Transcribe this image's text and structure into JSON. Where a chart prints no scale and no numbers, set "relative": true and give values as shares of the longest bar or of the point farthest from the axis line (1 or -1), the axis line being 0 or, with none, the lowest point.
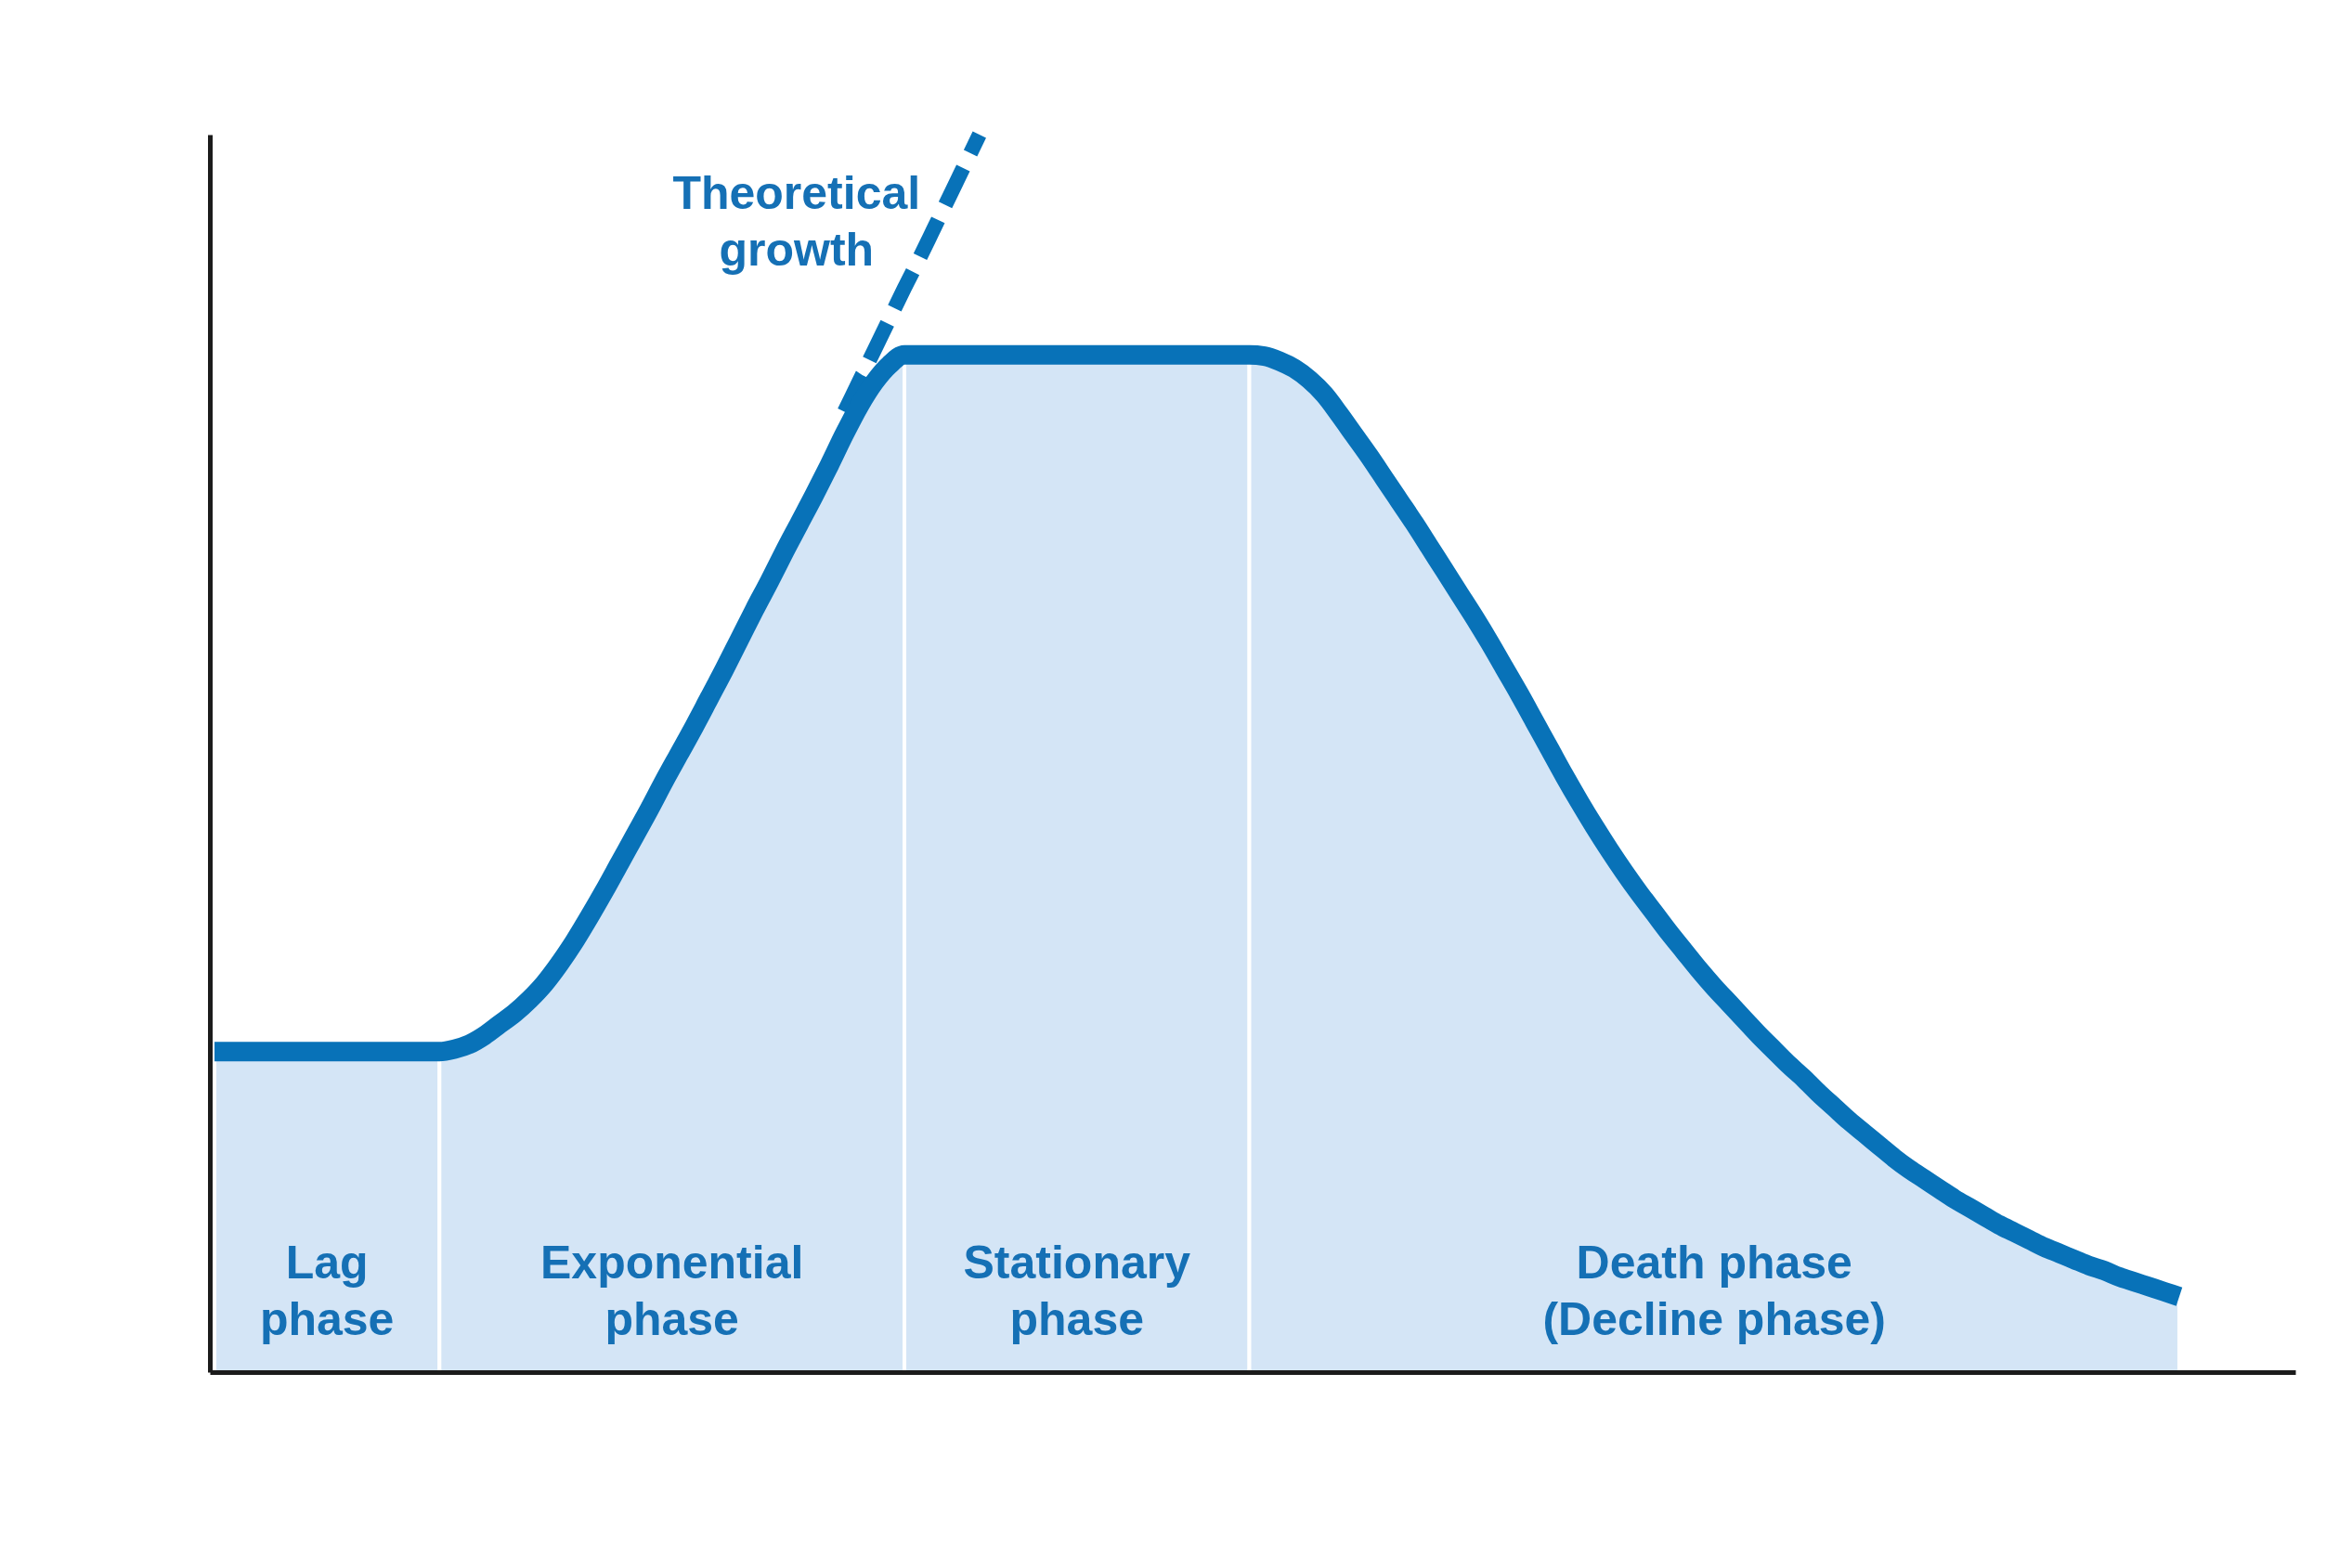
{
  "chart_data": {
    "type": "area",
    "relative": true,
    "tick_labels": false,
    "categories": [
      null,
      null,
      null,
      null,
      null,
      null,
      null,
      null,
      null,
      null,
      null,
      null,
      null,
      null,
      null,
      null,
      null,
      null,
      null,
      null,
      null,
      null,
      null,
      null,
      null,
      null,
      null,
      null,
      null,
      null,
      null,
      null,
      null,
      null,
      null,
      null,
      null,
      null,
      null,
      null,
      null,
      null,
      null,
      null,
      null,
      null,
      null,
      null,
      null,
      null,
      null,
      null,
      null,
      null,
      null,
      null,
      null,
      null,
      null,
      null,
      null,
      null,
      null,
      null,
      null,
      null,
      null,
      null,
      null,
      null,
      null,
      null,
      null,
      null,
      null,
      null,
      null,
      null,
      null,
      null,
      null,
      null,
      null,
      null,
      null,
      null,
      null,
      null,
      null,
      null,
      null,
      null,
      null,
      null,
      null,
      null,
      null,
      null,
      null,
      null,
      null,
      null,
      null,
      null,
      null,
      null,
      null,
      null,
      null,
      null,
      null,
      null,
      null,
      null,
      null,
      null,
      null,
      null,
      null,
      null,
      null,
      null,
      null,
      null,
      null,
      null,
      null,
      null,
      null,
      null,
      null,
      null
    ],
    "series": [
      {
        "name": "Lag\nphase",
        "color": "#d4e5f6",
        "values": [
          0.259,
          0.259,
          0.259,
          0.259,
          0.259,
          0.259,
          0.259,
          0.259,
          0.259,
          0.259,
          0.259,
          0.259,
          0.259,
          0.259,
          0.259,
          0.259,
          null,
          null,
          null,
          null,
          null,
          null,
          null,
          null,
          null,
          null,
          null,
          null,
          null,
          null,
          null,
          null,
          null,
          null,
          null,
          null,
          null,
          null,
          null,
          null,
          null,
          null,
          null,
          null,
          null,
          null,
          null,
          null,
          null,
          null,
          null,
          null,
          null,
          null,
          null,
          null,
          null,
          null,
          null,
          null,
          null,
          null,
          null,
          null,
          null,
          null,
          null,
          null,
          null,
          null,
          null,
          null,
          null,
          null,
          null,
          null,
          null,
          null,
          null,
          null,
          null,
          null,
          null,
          null,
          null,
          null,
          null,
          null,
          null,
          null,
          null,
          null,
          null,
          null,
          null,
          null,
          null,
          null,
          null,
          null,
          null,
          null,
          null,
          null,
          null,
          null,
          null,
          null,
          null,
          null,
          null,
          null,
          null,
          null,
          null,
          null,
          null,
          null,
          null,
          null,
          null,
          null,
          null,
          null,
          null,
          null,
          null,
          null,
          null,
          null,
          null,
          null
        ]
      },
      {
        "name": "Exponential\nphase",
        "color": "#d4e5f6",
        "values": [
          null,
          null,
          null,
          null,
          null,
          null,
          null,
          null,
          null,
          null,
          null,
          null,
          null,
          null,
          null,
          0.259,
          0.261,
          0.265,
          0.272,
          0.281,
          0.29,
          0.301,
          0.314,
          0.33,
          0.348,
          0.368,
          0.389,
          0.411,
          0.433,
          0.455,
          0.478,
          0.5,
          0.522,
          0.545,
          0.568,
          0.592,
          0.616,
          0.639,
          0.663,
          0.686,
          0.709,
          0.733,
          0.758,
          0.781,
          0.8,
          0.814,
          0.822,
          null,
          null,
          null,
          null,
          null,
          null,
          null,
          null,
          null,
          null,
          null,
          null,
          null,
          null,
          null,
          null,
          null,
          null,
          null,
          null,
          null,
          null,
          null,
          null,
          null,
          null,
          null,
          null,
          null,
          null,
          null,
          null,
          null,
          null,
          null,
          null,
          null,
          null,
          null,
          null,
          null,
          null,
          null,
          null,
          null,
          null,
          null,
          null,
          null,
          null,
          null,
          null,
          null,
          null,
          null,
          null,
          null,
          null,
          null,
          null,
          null,
          null,
          null,
          null,
          null,
          null,
          null,
          null,
          null,
          null,
          null,
          null,
          null,
          null,
          null,
          null,
          null,
          null,
          null,
          null,
          null,
          null,
          null,
          null,
          null
        ]
      },
      {
        "name": "Stationary\nphase",
        "color": "#d4e5f6",
        "values": [
          null,
          null,
          null,
          null,
          null,
          null,
          null,
          null,
          null,
          null,
          null,
          null,
          null,
          null,
          null,
          null,
          null,
          null,
          null,
          null,
          null,
          null,
          null,
          null,
          null,
          null,
          null,
          null,
          null,
          null,
          null,
          null,
          null,
          null,
          null,
          null,
          null,
          null,
          null,
          null,
          null,
          null,
          null,
          null,
          null,
          null,
          0.822,
          0.822,
          0.822,
          0.822,
          0.822,
          0.822,
          0.822,
          0.822,
          0.822,
          0.822,
          0.822,
          0.822,
          0.822,
          0.822,
          0.822,
          0.822,
          0.822,
          0.822,
          0.822,
          0.822,
          0.822,
          0.822,
          0.822,
          0.822,
          null,
          null,
          null,
          null,
          null,
          null,
          null,
          null,
          null,
          null,
          null,
          null,
          null,
          null,
          null,
          null,
          null,
          null,
          null,
          null,
          null,
          null,
          null,
          null,
          null,
          null,
          null,
          null,
          null,
          null,
          null,
          null,
          null,
          null,
          null,
          null,
          null,
          null,
          null,
          null,
          null,
          null,
          null,
          null,
          null,
          null,
          null,
          null,
          null,
          null,
          null,
          null,
          null,
          null,
          null,
          null,
          null,
          null,
          null,
          null,
          null,
          null
        ]
      },
      {
        "name": "Death phase\n(Decline phase)",
        "color": "#d4e5f6",
        "values": [
          null,
          null,
          null,
          null,
          null,
          null,
          null,
          null,
          null,
          null,
          null,
          null,
          null,
          null,
          null,
          null,
          null,
          null,
          null,
          null,
          null,
          null,
          null,
          null,
          null,
          null,
          null,
          null,
          null,
          null,
          null,
          null,
          null,
          null,
          null,
          null,
          null,
          null,
          null,
          null,
          null,
          null,
          null,
          null,
          null,
          null,
          null,
          null,
          null,
          null,
          null,
          null,
          null,
          null,
          null,
          null,
          null,
          null,
          null,
          null,
          null,
          null,
          null,
          null,
          null,
          null,
          null,
          null,
          null,
          0.822,
          0.821,
          0.817,
          0.811,
          0.802,
          0.79,
          0.774,
          0.757,
          0.74,
          0.722,
          0.704,
          0.686,
          0.667,
          0.648,
          0.629,
          0.61,
          0.59,
          0.569,
          0.548,
          0.526,
          0.504,
          0.482,
          0.461,
          0.441,
          0.422,
          0.404,
          0.387,
          0.371,
          0.355,
          0.34,
          0.325,
          0.311,
          0.298,
          0.285,
          0.272,
          0.26,
          0.248,
          0.237,
          0.225,
          0.214,
          0.203,
          0.193,
          0.183,
          0.173,
          0.164,
          0.156,
          0.148,
          0.14,
          0.133,
          0.126,
          0.119,
          0.113,
          0.107,
          0.101,
          0.096,
          0.091,
          0.086,
          0.082,
          0.077,
          0.073,
          0.069,
          0.065,
          0.061
        ]
      },
      {
        "type": "line",
        "name": "Theoretical\ngrowth",
        "color": "#0872b8",
        "line_style": "dashed",
        "values": [
          null,
          null,
          null,
          null,
          null,
          null,
          null,
          null,
          null,
          null,
          null,
          null,
          null,
          null,
          null,
          null,
          null,
          null,
          null,
          null,
          null,
          null,
          null,
          null,
          null,
          null,
          null,
          null,
          null,
          null,
          null,
          null,
          null,
          null,
          null,
          null,
          null,
          null,
          null,
          null,
          null,
          null,
          0.776,
          0.801,
          0.826,
          0.851,
          0.876,
          0.9,
          0.925,
          0.95,
          0.975,
          1.0,
          null,
          null,
          null,
          null,
          null,
          null,
          null,
          null,
          null,
          null,
          null,
          null,
          null,
          null,
          null,
          null,
          null,
          null,
          null,
          null,
          null,
          null,
          null,
          null,
          null,
          null,
          null,
          null,
          null,
          null,
          null,
          null,
          null,
          null,
          null,
          null,
          null,
          null,
          null,
          null,
          null,
          null,
          null,
          null,
          null,
          null,
          null,
          null,
          null,
          null,
          null,
          null,
          null,
          null,
          null,
          null,
          null,
          null,
          null,
          null,
          null,
          null,
          null,
          null,
          null,
          null,
          null,
          null,
          null,
          null,
          null,
          null,
          null,
          null,
          null,
          null,
          null,
          null,
          null,
          null
        ]
      },
      {
        "type": "line",
        "color": "#0872b8",
        "line_style": "solid",
        "values": [
          0.259,
          0.259,
          0.259,
          0.259,
          0.259,
          0.259,
          0.259,
          0.259,
          0.259,
          0.259,
          0.259,
          0.259,
          0.259,
          0.259,
          0.259,
          0.259,
          0.261,
          0.265,
          0.272,
          0.281,
          0.29,
          0.301,
          0.314,
          0.33,
          0.348,
          0.368,
          0.389,
          0.411,
          0.433,
          0.455,
          0.478,
          0.5,
          0.522,
          0.545,
          0.568,
          0.592,
          0.616,
          0.639,
          0.663,
          0.686,
          0.709,
          0.733,
          0.758,
          0.781,
          0.8,
          0.814,
          0.822,
          0.822,
          0.822,
          0.822,
          0.822,
          0.822,
          0.822,
          0.822,
          0.822,
          0.822,
          0.822,
          0.822,
          0.822,
          0.822,
          0.822,
          0.822,
          0.822,
          0.822,
          0.822,
          0.822,
          0.822,
          0.822,
          0.822,
          0.822,
          0.821,
          0.817,
          0.811,
          0.802,
          0.79,
          0.774,
          0.757,
          0.74,
          0.722,
          0.704,
          0.686,
          0.667,
          0.648,
          0.629,
          0.61,
          0.59,
          0.569,
          0.548,
          0.526,
          0.504,
          0.482,
          0.461,
          0.441,
          0.422,
          0.404,
          0.387,
          0.371,
          0.355,
          0.34,
          0.325,
          0.311,
          0.298,
          0.285,
          0.272,
          0.26,
          0.248,
          0.237,
          0.225,
          0.214,
          0.203,
          0.193,
          0.183,
          0.173,
          0.164,
          0.156,
          0.148,
          0.14,
          0.133,
          0.126,
          0.119,
          0.113,
          0.107,
          0.101,
          0.096,
          0.091,
          0.086,
          0.082,
          0.077,
          0.073,
          0.069,
          0.065,
          0.061
        ]
      }
    ]
  }
}
